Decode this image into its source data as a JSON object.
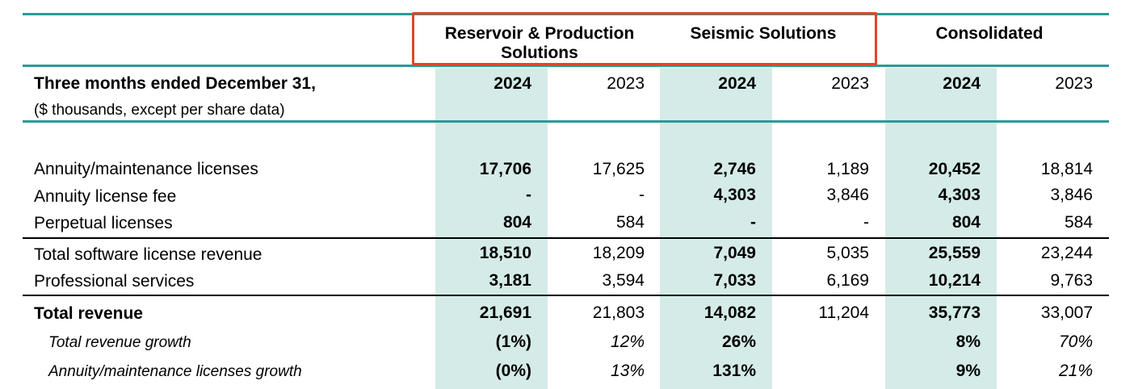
{
  "segments": {
    "rps": "Reservoir & Production Solutions",
    "seismic": "Seismic Solutions",
    "consolidated": "Consolidated"
  },
  "header": {
    "period": "Three months ended December 31,",
    "units": "($ thousands, except per share data)",
    "years": [
      "2024",
      "2023",
      "2024",
      "2023",
      "2024",
      "2023"
    ]
  },
  "rows": [
    {
      "label": "Annuity/maintenance licenses",
      "values": [
        "17,706",
        "17,625",
        "2,746",
        "1,189",
        "20,452",
        "18,814"
      ]
    },
    {
      "label": "Annuity license fee",
      "values": [
        "-",
        "-",
        "4,303",
        "3,846",
        "4,303",
        "3,846"
      ]
    },
    {
      "label": "Perpetual licenses",
      "values": [
        "804",
        "584",
        "-",
        "-",
        "804",
        "584"
      ]
    },
    {
      "label": "Total software license revenue",
      "values": [
        "18,510",
        "18,209",
        "7,049",
        "5,035",
        "25,559",
        "23,244"
      ]
    },
    {
      "label": "Professional services",
      "values": [
        "3,181",
        "3,594",
        "7,033",
        "6,169",
        "10,214",
        "9,763"
      ]
    },
    {
      "label": "Total revenue",
      "values": [
        "21,691",
        "21,803",
        "14,082",
        "11,204",
        "35,773",
        "33,007"
      ]
    },
    {
      "label": "Total revenue growth",
      "values": [
        "(1%)",
        "12%",
        "26%",
        "",
        "8%",
        "70%"
      ]
    },
    {
      "label": "Annuity/maintenance licenses growth",
      "values": [
        "(0%)",
        "13%",
        "131%",
        "",
        "9%",
        "21%"
      ]
    }
  ]
}
